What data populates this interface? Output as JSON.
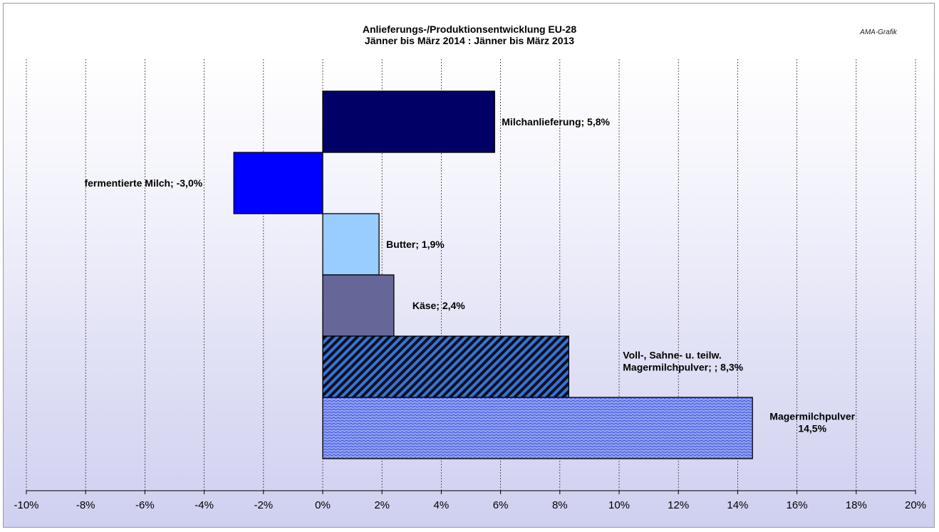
{
  "chart_data": {
    "type": "bar",
    "orientation": "horizontal",
    "title": [
      "Anlieferungs-/Produktionsentwicklung  EU-28",
      "Jänner bis März 2014 : Jänner bis März 2013"
    ],
    "credit": "AMA-Grafik",
    "xlim": [
      -10,
      20
    ],
    "x_ticks": [
      "-10%",
      "-8%",
      "-6%",
      "-4%",
      "-2%",
      "0%",
      "2%",
      "4%",
      "6%",
      "8%",
      "10%",
      "12%",
      "14%",
      "16%",
      "18%",
      "20%"
    ],
    "grid": "vertical dashed",
    "categories": [
      {
        "name": "Milchanlieferung",
        "value": 5.8,
        "label": [
          "Milchanlieferung;  5,8%"
        ],
        "color": "#000066",
        "pattern": "solid"
      },
      {
        "name": "fermentierte Milch",
        "value": -3.0,
        "label": [
          "fermentierte Milch;  -3,0%"
        ],
        "color": "#0000ff",
        "pattern": "solid"
      },
      {
        "name": "Butter",
        "value": 1.9,
        "label": [
          "Butter; 1,9%"
        ],
        "color": "#99ccff",
        "pattern": "solid"
      },
      {
        "name": "Käse",
        "value": 2.4,
        "label": [
          "Käse; 2,4%"
        ],
        "color": "#666699",
        "pattern": "solid"
      },
      {
        "name": "Voll-, Sahne- u. teilw. Magermilchpulver",
        "value": 8.3,
        "label": [
          "Voll-, Sahne- u. teilw.",
          "Magermilchpulver;  ; 8,3%"
        ],
        "color": "#1a2a66",
        "pattern": "diagonal"
      },
      {
        "name": "Magermilchpulver",
        "value": 14.5,
        "label": [
          "Magermilchpulver",
          "14,5%"
        ],
        "color": "#6a80ee",
        "pattern": "wave"
      }
    ]
  }
}
